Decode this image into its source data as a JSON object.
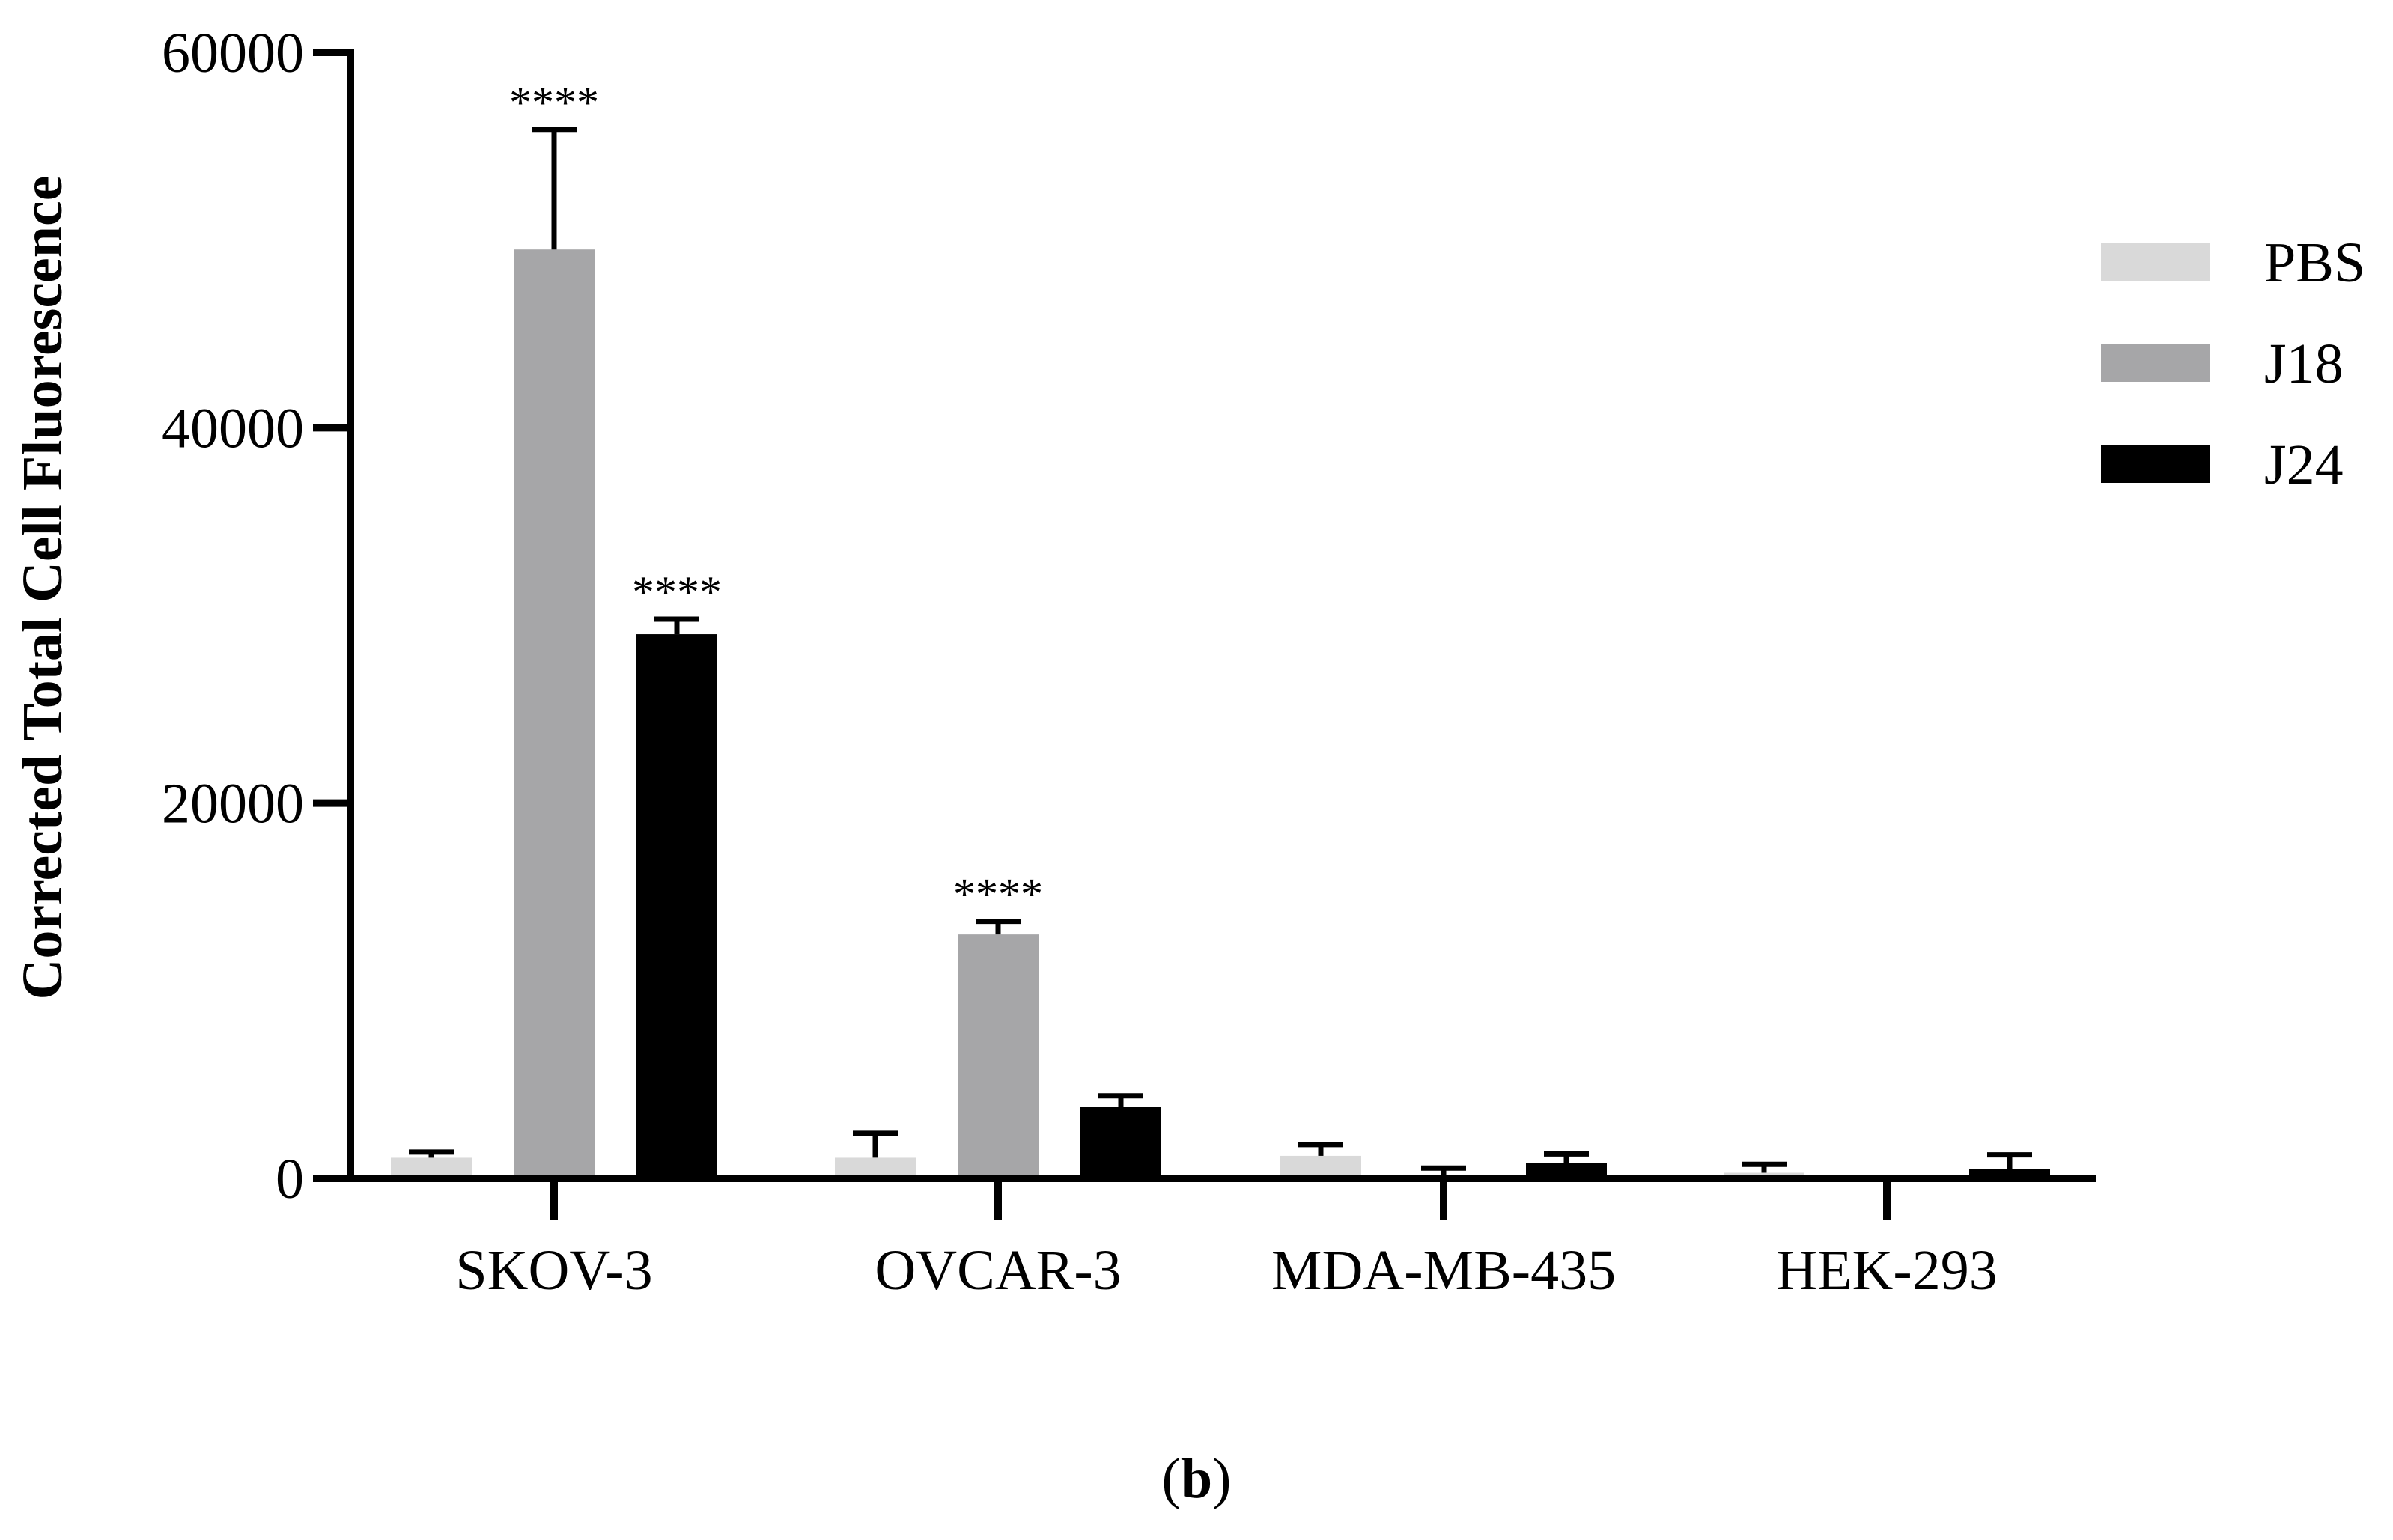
{
  "chart_data": {
    "type": "bar",
    "ylabel": "Corrected Total Cell Fluorescence",
    "xlabel": "",
    "ylim": [
      0,
      60000
    ],
    "yticks": [
      0,
      20000,
      40000,
      60000
    ],
    "ytick_labels": [
      "0",
      "20000",
      "40000",
      "60000"
    ],
    "categories": [
      "SKOV-3",
      "OVCAR-3",
      "MDA-MB-435",
      "HEK-293"
    ],
    "series": [
      {
        "name": "PBS",
        "color": "#d9d9d9",
        "values": [
          1100,
          1100,
          1200,
          300
        ],
        "errors": [
          300,
          1300,
          600,
          450
        ]
      },
      {
        "name": "J18",
        "color": "#a6a6a8",
        "values": [
          49500,
          13000,
          200,
          0
        ],
        "errors": [
          6400,
          700,
          350,
          0
        ]
      },
      {
        "name": "J24",
        "color": "#000000",
        "values": [
          29000,
          3800,
          800,
          500
        ],
        "errors": [
          800,
          600,
          500,
          750
        ]
      }
    ],
    "significance": [
      {
        "category": "SKOV-3",
        "series": "J18",
        "label": "****"
      },
      {
        "category": "SKOV-3",
        "series": "J24",
        "label": "****"
      },
      {
        "category": "OVCAR-3",
        "series": "J18",
        "label": "****"
      }
    ],
    "legend_position": "right",
    "grid": false
  },
  "panel_label": {
    "open": "(",
    "letter": "b",
    "close": ")"
  }
}
